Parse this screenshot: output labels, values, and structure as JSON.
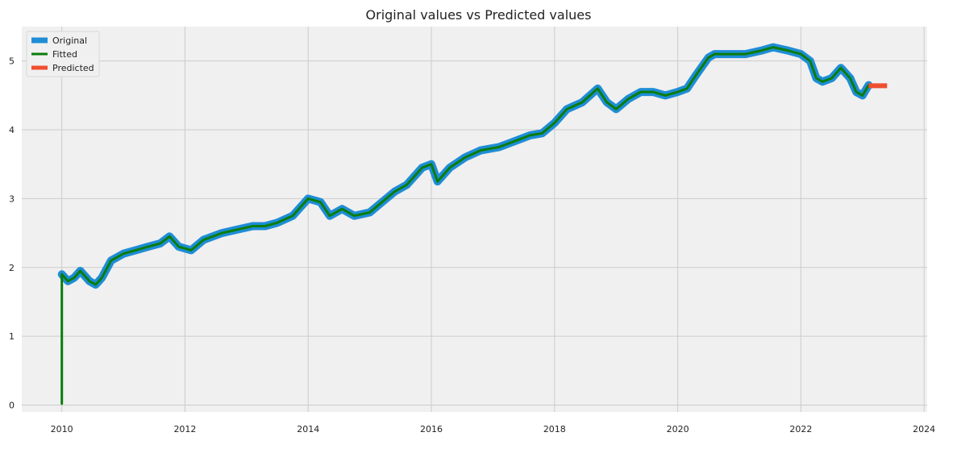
{
  "chart_data": {
    "type": "line",
    "title": "Original values vs Predicted values",
    "xlabel": "",
    "ylabel": "",
    "x_ticks": [
      "2010",
      "2012",
      "2014",
      "2016",
      "2018",
      "2020",
      "2022",
      "2024"
    ],
    "y_ticks": [
      "0",
      "1",
      "2",
      "3",
      "4",
      "5"
    ],
    "xlim": [
      2009.35,
      2024.05
    ],
    "ylim": [
      -0.1,
      5.5
    ],
    "grid": true,
    "legend": {
      "placement": "top-left",
      "entries": [
        "Original",
        "Fitted",
        "Predicted"
      ]
    },
    "colors": {
      "original": "#1f8dd6",
      "fitted": "#0a7d0a",
      "predicted": "#f04e30",
      "background": "#f0f0f0",
      "grid": "#cccccc"
    },
    "series": [
      {
        "name": "Original",
        "x": [
          2010.0,
          2010.1,
          2010.2,
          2010.3,
          2010.45,
          2010.55,
          2010.65,
          2010.8,
          2011.0,
          2011.2,
          2011.4,
          2011.6,
          2011.75,
          2011.9,
          2012.1,
          2012.3,
          2012.6,
          2012.85,
          2013.1,
          2013.3,
          2013.5,
          2013.75,
          2014.0,
          2014.2,
          2014.35,
          2014.55,
          2014.75,
          2015.0,
          2015.2,
          2015.4,
          2015.6,
          2015.85,
          2016.0,
          2016.1,
          2016.3,
          2016.55,
          2016.8,
          2017.1,
          2017.4,
          2017.6,
          2017.8,
          2018.0,
          2018.2,
          2018.45,
          2018.7,
          2018.85,
          2019.0,
          2019.2,
          2019.4,
          2019.6,
          2019.8,
          2020.0,
          2020.15,
          2020.3,
          2020.5,
          2020.6,
          2020.85,
          2021.1,
          2021.35,
          2021.55,
          2021.8,
          2022.0,
          2022.15,
          2022.25,
          2022.35,
          2022.5,
          2022.65,
          2022.8,
          2022.9,
          2023.0,
          2023.1
        ],
        "y": [
          1.9,
          1.8,
          1.85,
          1.95,
          1.8,
          1.75,
          1.85,
          2.1,
          2.2,
          2.25,
          2.3,
          2.35,
          2.45,
          2.3,
          2.25,
          2.4,
          2.5,
          2.55,
          2.6,
          2.6,
          2.65,
          2.75,
          3.0,
          2.95,
          2.75,
          2.85,
          2.75,
          2.8,
          2.95,
          3.1,
          3.2,
          3.45,
          3.5,
          3.25,
          3.45,
          3.6,
          3.7,
          3.75,
          3.85,
          3.92,
          3.95,
          4.1,
          4.3,
          4.4,
          4.6,
          4.4,
          4.3,
          4.45,
          4.55,
          4.55,
          4.5,
          4.55,
          4.6,
          4.8,
          5.05,
          5.1,
          5.1,
          5.1,
          5.15,
          5.2,
          5.15,
          5.1,
          5.0,
          4.75,
          4.7,
          4.75,
          4.9,
          4.75,
          4.55,
          4.5,
          4.65
        ]
      },
      {
        "name": "Fitted",
        "x": [
          2010.0,
          2010.0,
          2010.1,
          2010.2,
          2010.3,
          2010.45,
          2010.55,
          2010.65,
          2010.8,
          2011.0,
          2011.2,
          2011.4,
          2011.6,
          2011.75,
          2011.9,
          2012.1,
          2012.3,
          2012.6,
          2012.85,
          2013.1,
          2013.3,
          2013.5,
          2013.75,
          2014.0,
          2014.2,
          2014.35,
          2014.55,
          2014.75,
          2015.0,
          2015.2,
          2015.4,
          2015.6,
          2015.85,
          2016.0,
          2016.1,
          2016.3,
          2016.55,
          2016.8,
          2017.1,
          2017.4,
          2017.6,
          2017.8,
          2018.0,
          2018.2,
          2018.45,
          2018.7,
          2018.85,
          2019.0,
          2019.2,
          2019.4,
          2019.6,
          2019.8,
          2020.0,
          2020.15,
          2020.3,
          2020.5,
          2020.6,
          2020.85,
          2021.1,
          2021.35,
          2021.55,
          2021.8,
          2022.0,
          2022.15,
          2022.25,
          2022.35,
          2022.5,
          2022.65,
          2022.8,
          2022.9,
          2023.0,
          2023.1
        ],
        "y": [
          0.02,
          1.9,
          1.8,
          1.85,
          1.95,
          1.8,
          1.75,
          1.85,
          2.1,
          2.2,
          2.25,
          2.3,
          2.35,
          2.45,
          2.3,
          2.25,
          2.4,
          2.5,
          2.55,
          2.6,
          2.6,
          2.65,
          2.75,
          3.0,
          2.95,
          2.75,
          2.85,
          2.75,
          2.8,
          2.95,
          3.1,
          3.2,
          3.45,
          3.5,
          3.25,
          3.45,
          3.6,
          3.7,
          3.75,
          3.85,
          3.92,
          3.95,
          4.1,
          4.3,
          4.4,
          4.6,
          4.4,
          4.3,
          4.45,
          4.55,
          4.55,
          4.5,
          4.55,
          4.6,
          4.8,
          5.05,
          5.1,
          5.1,
          5.1,
          5.15,
          5.2,
          5.15,
          5.1,
          5.0,
          4.75,
          4.7,
          4.75,
          4.9,
          4.75,
          4.55,
          4.5,
          4.65
        ]
      },
      {
        "name": "Predicted",
        "x": [
          2023.1,
          2023.4
        ],
        "y": [
          4.64,
          4.64
        ]
      }
    ]
  }
}
